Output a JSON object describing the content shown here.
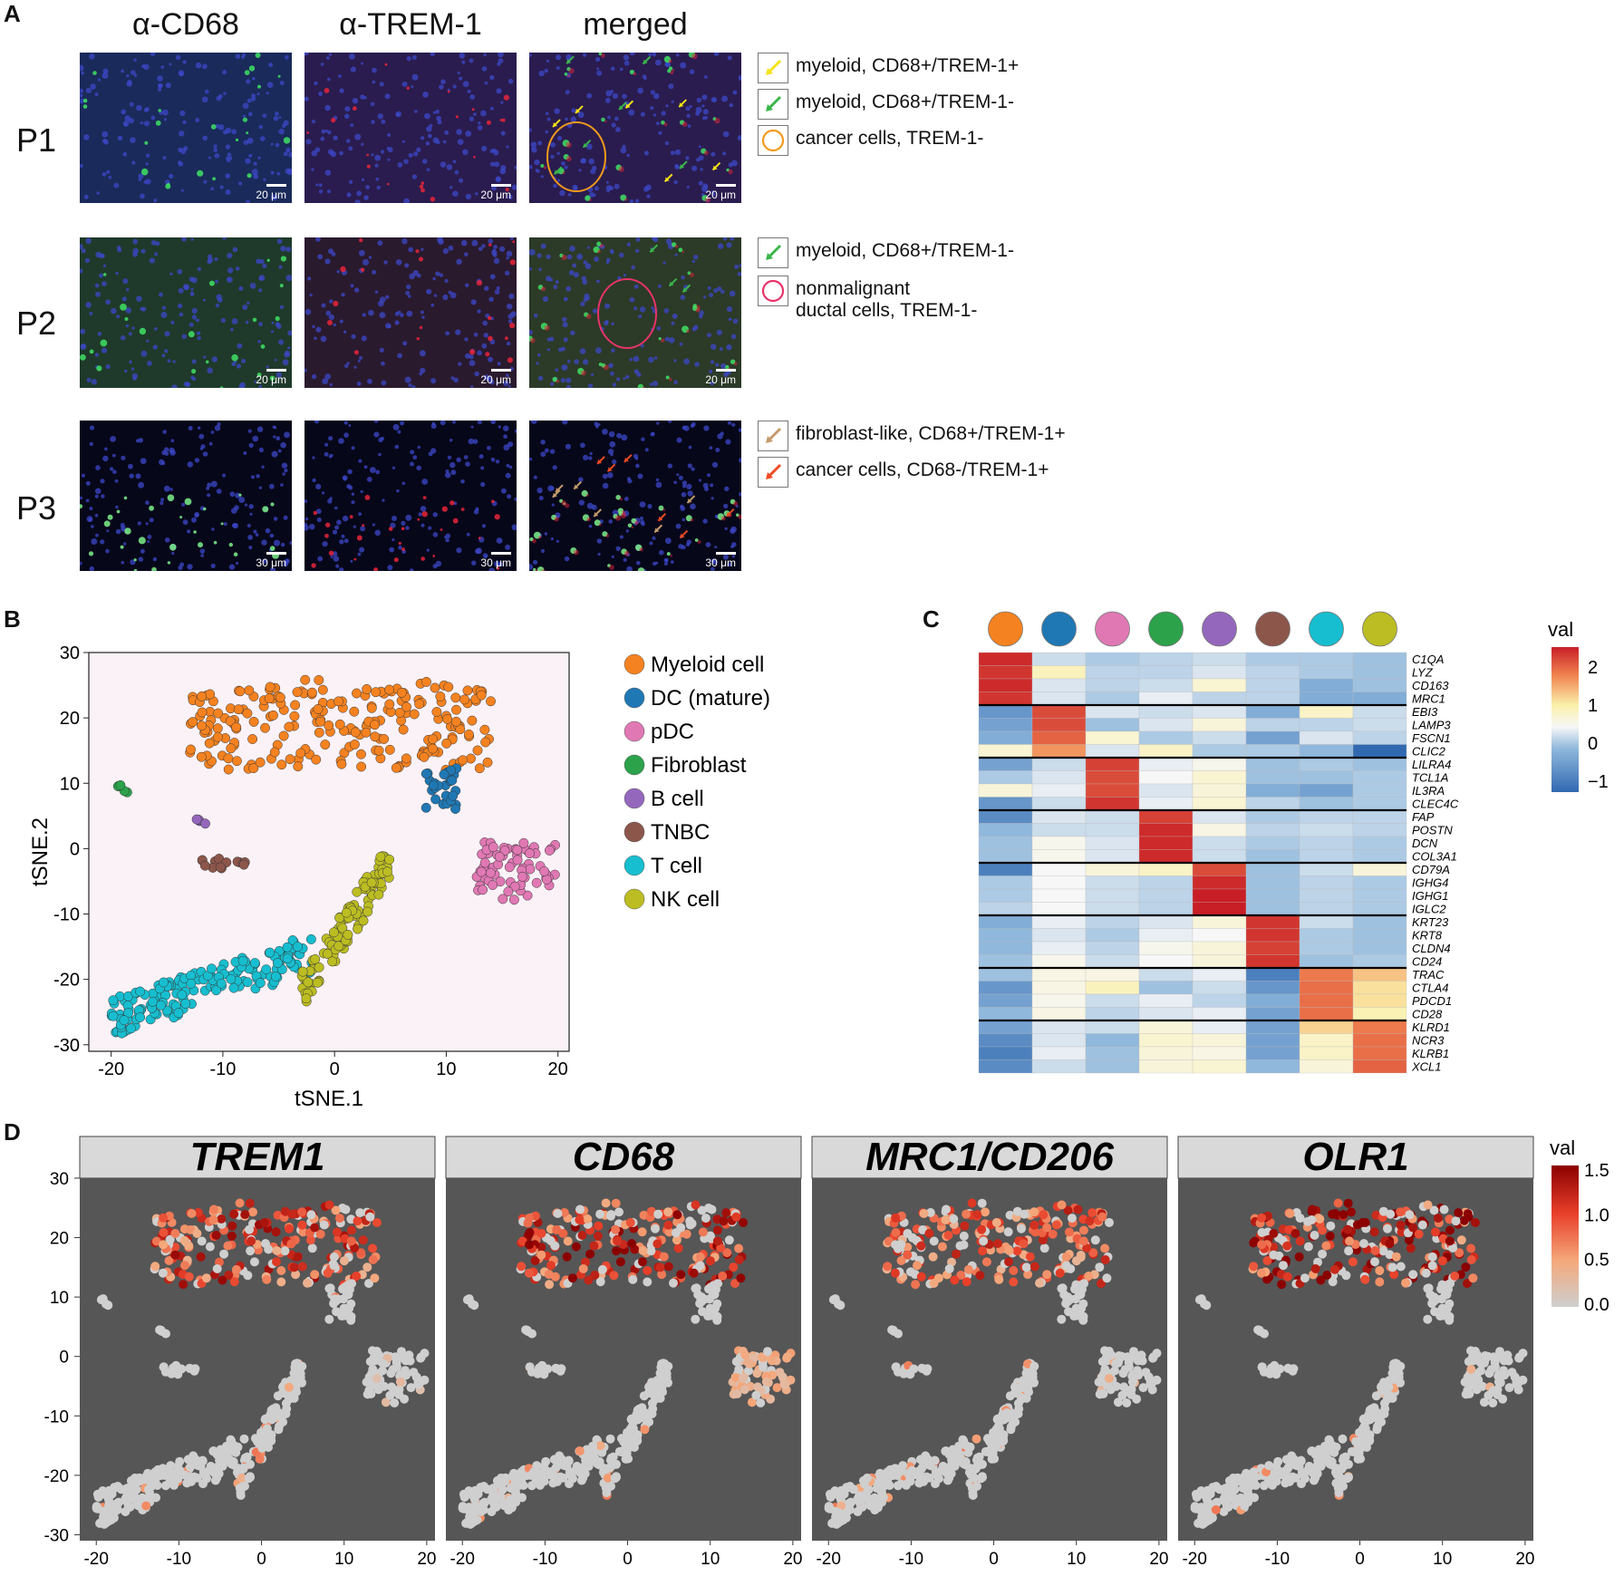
{
  "panel_labels": {
    "A": "A",
    "B": "B",
    "C": "C",
    "D": "D"
  },
  "panelA": {
    "columns": [
      "α-CD68",
      "α-TREM-1",
      "merged"
    ],
    "rows": [
      "P1",
      "P2",
      "P3"
    ],
    "scalebars": [
      "20 μm",
      "20 μm",
      "30 μm"
    ],
    "legends": [
      [
        {
          "label": "myeloid, CD68+/TREM-1+",
          "color": "#f4e21a",
          "icon": "arrow-icon"
        },
        {
          "label": "myeloid, CD68+/TREM-1-",
          "color": "#3ab54a",
          "icon": "arrow-icon"
        },
        {
          "label": "cancer cells, TREM-1-",
          "color": "#f39a1e",
          "icon": "circle-icon"
        }
      ],
      [
        {
          "label": "myeloid, CD68+/TREM-1-",
          "color": "#3ab54a",
          "icon": "arrow-icon"
        },
        {
          "label": "nonmalignant\nductal cells, TREM-1-",
          "color": "#e8336a",
          "icon": "circle-icon"
        }
      ],
      [
        {
          "label": "fibroblast-like, CD68+/TREM-1+",
          "color": "#c49a6c",
          "icon": "arrow-icon"
        },
        {
          "label": "cancer cells, CD68-/TREM-1+",
          "color": "#ef4b23",
          "icon": "arrow-icon"
        }
      ]
    ]
  },
  "chart_data": [
    {
      "panel": "B",
      "type": "scatter",
      "xlabel": "tSNE.1",
      "ylabel": "tSNE.2",
      "xlim": [
        -22,
        21
      ],
      "ylim": [
        -31,
        30
      ],
      "xticks": [
        -20,
        -10,
        0,
        10,
        20
      ],
      "yticks": [
        30,
        20,
        10,
        0,
        -10,
        -20,
        -30
      ],
      "background": "#fbf2f7",
      "legend_position": "right",
      "series": [
        {
          "name": "Myeloid cell",
          "color": "#f58220",
          "clusters": [
            {
              "x": [
                -13,
                14
              ],
              "y": [
                12,
                27
              ],
              "n": 230,
              "shape": "arch"
            }
          ]
        },
        {
          "name": "DC (mature)",
          "color": "#1f78b4",
          "clusters": [
            {
              "x": [
                8,
                11
              ],
              "y": [
                6,
                13
              ],
              "n": 28
            }
          ]
        },
        {
          "name": "pDC",
          "color": "#e078b4",
          "clusters": [
            {
              "x": [
                12.5,
                20
              ],
              "y": [
                -8,
                1
              ],
              "n": 70
            }
          ]
        },
        {
          "name": "Fibroblast",
          "color": "#2ca24b",
          "clusters": [
            {
              "x": [
                -19.5,
                -18
              ],
              "y": [
                7.5,
                10
              ],
              "n": 5
            }
          ]
        },
        {
          "name": "B cell",
          "color": "#9467bd",
          "clusters": [
            {
              "x": [
                -12.5,
                -11.5
              ],
              "y": [
                3,
                4.5
              ],
              "n": 4
            }
          ]
        },
        {
          "name": "TNBC",
          "color": "#8c564b",
          "clusters": [
            {
              "x": [
                -12,
                -7.5
              ],
              "y": [
                -3,
                -1.5
              ],
              "n": 14
            }
          ]
        },
        {
          "name": "T cell",
          "color": "#17becf",
          "clusters": [
            {
              "x": [
                -20,
                -2
              ],
              "y": [
                -26,
                -16
              ],
              "n": 170,
              "shape": "band"
            }
          ]
        },
        {
          "name": "NK cell",
          "color": "#bcbd22",
          "clusters": [
            {
              "x": [
                -3,
                5
              ],
              "y": [
                -22,
                -2
              ],
              "n": 120,
              "shape": "band"
            }
          ]
        }
      ]
    },
    {
      "panel": "C",
      "type": "heatmap",
      "legend_title": "val",
      "legend_ticks": [
        "2",
        "1",
        "0",
        "−1"
      ],
      "column_colors": [
        "#f58220",
        "#1f78b4",
        "#e078b4",
        "#2ca24b",
        "#9467bd",
        "#8c564b",
        "#17becf",
        "#bcbd22"
      ],
      "genes": [
        "C1QA",
        "LYZ",
        "CD163",
        "MRC1",
        "EBI3",
        "LAMP3",
        "FSCN1",
        "CLIC2",
        "LILRA4",
        "TCL1A",
        "IL3RA",
        "CLEC4C",
        "FAP",
        "POSTN",
        "DCN",
        "COL3A1",
        "CD79A",
        "IGHG4",
        "IGHG1",
        "IGLC2",
        "KRT23",
        "KRT8",
        "CLDN4",
        "CD24",
        "TRAC",
        "CTLA4",
        "PDCD1",
        "CD28",
        "KLRD1",
        "NCR3",
        "KLRB1",
        "XCL1"
      ],
      "values": [
        [
          2.3,
          -0.3,
          -0.5,
          -0.4,
          -0.3,
          -0.5,
          -0.5,
          -0.6
        ],
        [
          2.2,
          0.6,
          -0.4,
          -0.4,
          -0.2,
          -0.4,
          -0.5,
          -0.6
        ],
        [
          2.3,
          -0.2,
          -0.4,
          -0.3,
          0.4,
          -0.4,
          -0.8,
          -0.6
        ],
        [
          2.2,
          -0.2,
          -0.5,
          -0.1,
          -0.4,
          -0.4,
          -0.8,
          -0.8
        ],
        [
          -1.0,
          2.0,
          -0.2,
          -0.3,
          -0.2,
          -0.8,
          0.5,
          -0.3
        ],
        [
          -0.9,
          2.0,
          -0.6,
          -0.2,
          0.3,
          -0.4,
          -0.4,
          -0.3
        ],
        [
          -0.8,
          1.8,
          0.4,
          -0.5,
          -0.3,
          -0.9,
          -0.2,
          -0.4
        ],
        [
          0.4,
          1.4,
          -0.2,
          0.5,
          -0.5,
          -0.5,
          -0.7,
          -1.4
        ],
        [
          -0.9,
          -0.3,
          2.1,
          -0.1,
          0.1,
          -0.6,
          -0.5,
          -0.6
        ],
        [
          -0.5,
          -0.2,
          2.0,
          0.0,
          0.4,
          -0.6,
          -0.6,
          -0.5
        ],
        [
          0.3,
          -0.1,
          2.0,
          -0.2,
          0.3,
          -0.8,
          -0.9,
          -0.5
        ],
        [
          -1.0,
          -0.3,
          2.2,
          -0.1,
          0.4,
          -0.4,
          -0.6,
          -0.5
        ],
        [
          -1.1,
          -0.2,
          -0.3,
          2.1,
          -0.2,
          -0.5,
          -0.4,
          -0.4
        ],
        [
          -0.7,
          -0.3,
          -0.3,
          2.3,
          0.2,
          -0.4,
          -0.3,
          -0.4
        ],
        [
          -0.6,
          0.1,
          -0.2,
          2.3,
          -0.3,
          -0.5,
          -0.4,
          -0.5
        ],
        [
          -0.6,
          0.1,
          -0.2,
          2.3,
          -0.3,
          -0.6,
          -0.4,
          -0.5
        ],
        [
          -1.2,
          0.0,
          0.3,
          0.5,
          2.0,
          -0.6,
          -0.3,
          0.3
        ],
        [
          -0.5,
          0.0,
          -0.3,
          -0.4,
          2.3,
          -0.6,
          -0.4,
          -0.5
        ],
        [
          -0.5,
          0.0,
          -0.3,
          -0.4,
          2.4,
          -0.6,
          -0.4,
          -0.5
        ],
        [
          -0.4,
          0.0,
          -0.3,
          -0.4,
          2.4,
          -0.6,
          -0.4,
          -0.5
        ],
        [
          -0.8,
          -0.1,
          -0.4,
          -0.2,
          0.3,
          2.2,
          -0.3,
          -0.6
        ],
        [
          -0.7,
          -0.2,
          -0.5,
          -0.1,
          0.0,
          2.2,
          -0.5,
          -0.6
        ],
        [
          -0.7,
          -0.1,
          -0.4,
          0.1,
          0.3,
          2.1,
          -0.5,
          -0.6
        ],
        [
          -0.6,
          0.1,
          -0.3,
          0.0,
          0.3,
          2.2,
          -0.6,
          -0.5
        ],
        [
          -0.6,
          0.2,
          0.2,
          -0.3,
          -0.1,
          -1.2,
          1.6,
          1.1
        ],
        [
          -1.0,
          0.2,
          0.6,
          -0.6,
          -0.3,
          -1.0,
          1.7,
          0.9
        ],
        [
          -0.9,
          0.1,
          -0.3,
          -0.1,
          -0.4,
          -0.8,
          1.7,
          0.9
        ],
        [
          -0.7,
          0.2,
          -0.4,
          -0.2,
          -0.1,
          -0.9,
          1.7,
          0.7
        ],
        [
          -0.9,
          -0.2,
          -0.3,
          0.3,
          -0.1,
          -0.9,
          1.0,
          1.6
        ],
        [
          -1.1,
          -0.2,
          -0.7,
          0.4,
          0.3,
          -0.9,
          0.5,
          1.7
        ],
        [
          -1.2,
          -0.1,
          -0.6,
          0.3,
          0.2,
          -0.9,
          0.5,
          1.7
        ],
        [
          -1.1,
          -0.3,
          -0.6,
          0.3,
          0.4,
          -0.7,
          0.3,
          1.8
        ]
      ],
      "group_breaks_after": [
        4,
        8,
        12,
        16,
        20,
        24,
        28
      ]
    },
    {
      "panel": "D",
      "type": "scatter",
      "facets": [
        "TREM1",
        "CD68",
        "MRC1/CD206",
        "OLR1"
      ],
      "xticks": [
        -20,
        -10,
        0,
        10,
        20
      ],
      "yticks": [
        30,
        20,
        10,
        0,
        -10,
        -20,
        -30
      ],
      "xlim": [
        -22,
        21
      ],
      "ylim": [
        -31,
        30
      ],
      "background": "#565656",
      "legend_title": "val",
      "legend_ticks": [
        "1.5",
        "1.0",
        "0.5",
        "0.0"
      ],
      "color_scale": [
        "#cfcfcf",
        "#f4a77a",
        "#e8402a",
        "#8b0000"
      ],
      "expression_summary": [
        {
          "gene": "TREM1",
          "myeloid_mean": 0.9,
          "pDC_mean": 0.0,
          "other_mean": 0.02
        },
        {
          "gene": "CD68",
          "myeloid_mean": 1.0,
          "pDC_mean": 0.4,
          "other_mean": 0.03
        },
        {
          "gene": "MRC1/CD206",
          "myeloid_mean": 0.8,
          "pDC_mean": 0.02,
          "other_mean": 0.02
        },
        {
          "gene": "OLR1",
          "myeloid_mean": 1.1,
          "pDC_mean": 0.03,
          "other_mean": 0.04
        }
      ]
    }
  ]
}
